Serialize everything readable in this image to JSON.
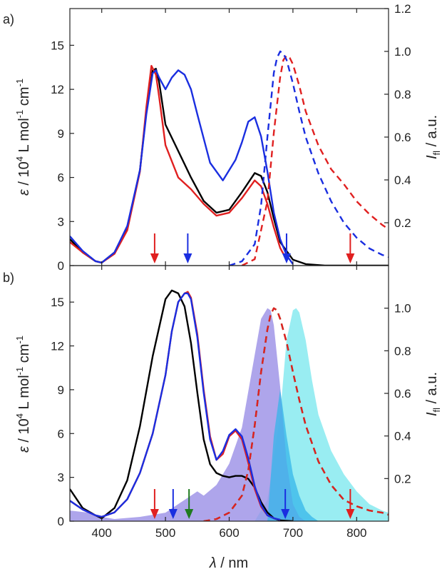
{
  "figure": {
    "panels": [
      {
        "id": "a",
        "label": "a)"
      },
      {
        "id": "b",
        "label": "b)"
      }
    ],
    "xlabel": "λ / nm",
    "ylabel_left": {
      "main": "ε / 10",
      "sup": "4",
      "mid": " L mol",
      "sup2": "-1",
      "end": " cm",
      "sup3": "-1"
    },
    "ylabel_right": {
      "main": "I",
      "sub": "fl",
      "end": " / a.u."
    },
    "colors": {
      "black": "#000000",
      "red": "#e02020",
      "blue": "#1a2ee0",
      "green": "#1f7a1f",
      "purple_fill": "#9a8ee6",
      "cyan_fill": "#7fe8ef",
      "deep_cyan": "#35b6ea"
    }
  },
  "chart_data": [
    {
      "panel": "a",
      "type": "line",
      "xlim": [
        350,
        850
      ],
      "x_ticks": [
        400,
        500,
        600,
        700,
        800
      ],
      "ylim_left": [
        0,
        17.5
      ],
      "y_ticks_left": [
        "0",
        "3",
        "6",
        "9",
        "12",
        "15"
      ],
      "ylim_right": [
        0,
        1.2
      ],
      "y_ticks_right": [
        "0.2",
        "0.4",
        "0.6",
        "0.8",
        "1.0",
        "1.2"
      ],
      "series": [
        {
          "color": "black",
          "style": "solid",
          "axis": "left",
          "x": [
            350,
            370,
            390,
            400,
            420,
            440,
            460,
            470,
            480,
            485,
            490,
            500,
            520,
            540,
            560,
            580,
            600,
            620,
            640,
            650,
            660,
            670,
            680,
            700,
            720,
            750,
            800,
            850
          ],
          "y": [
            1.8,
            0.9,
            0.3,
            0.2,
            0.9,
            2.6,
            6.5,
            10.5,
            13.3,
            13.4,
            12.5,
            9.6,
            7.8,
            6.0,
            4.4,
            3.6,
            3.8,
            5.0,
            6.3,
            6.1,
            5.0,
            3.2,
            1.6,
            0.4,
            0.1,
            0.0,
            0.0,
            0.0
          ]
        },
        {
          "color": "red",
          "style": "solid",
          "axis": "left",
          "x": [
            350,
            370,
            390,
            400,
            420,
            440,
            460,
            470,
            478,
            485,
            490,
            500,
            520,
            540,
            560,
            580,
            600,
            620,
            640,
            650,
            660,
            670,
            680,
            690
          ],
          "y": [
            1.6,
            0.9,
            0.3,
            0.2,
            0.8,
            2.4,
            6.4,
            10.8,
            13.6,
            13.0,
            11.5,
            8.2,
            6.0,
            5.2,
            4.2,
            3.4,
            3.6,
            4.6,
            5.8,
            5.4,
            4.2,
            2.6,
            1.2,
            0.4
          ]
        },
        {
          "color": "blue",
          "style": "solid",
          "axis": "left",
          "x": [
            350,
            370,
            390,
            400,
            420,
            440,
            460,
            470,
            480,
            485,
            490,
            500,
            510,
            520,
            530,
            540,
            550,
            570,
            590,
            610,
            620,
            630,
            640,
            650,
            660,
            670,
            680,
            690,
            700
          ],
          "y": [
            2.0,
            1.0,
            0.3,
            0.2,
            0.9,
            2.7,
            6.5,
            10.3,
            13.1,
            13.3,
            12.8,
            12.0,
            12.8,
            13.3,
            13.0,
            12.0,
            10.3,
            7.0,
            5.8,
            7.2,
            8.4,
            9.8,
            10.1,
            8.8,
            6.4,
            3.6,
            1.8,
            0.7,
            0.1
          ]
        },
        {
          "color": "red",
          "style": "dashed",
          "axis": "right",
          "x": [
            620,
            640,
            660,
            670,
            680,
            685,
            690,
            695,
            700,
            710,
            720,
            740,
            760,
            780,
            800,
            820,
            840,
            850
          ],
          "y": [
            0.0,
            0.03,
            0.3,
            0.62,
            0.88,
            0.96,
            0.98,
            0.97,
            0.94,
            0.84,
            0.72,
            0.56,
            0.45,
            0.38,
            0.3,
            0.24,
            0.19,
            0.17
          ]
        },
        {
          "color": "blue",
          "style": "dashed",
          "axis": "right",
          "x": [
            600,
            620,
            640,
            650,
            660,
            670,
            675,
            680,
            685,
            690,
            700,
            710,
            720,
            740,
            760,
            780,
            800,
            820,
            840,
            850
          ],
          "y": [
            0.0,
            0.02,
            0.1,
            0.28,
            0.6,
            0.9,
            0.97,
            1.0,
            0.99,
            0.96,
            0.85,
            0.72,
            0.6,
            0.43,
            0.3,
            0.2,
            0.13,
            0.08,
            0.05,
            0.04
          ]
        }
      ],
      "arrows": [
        {
          "x": 483,
          "color": "red"
        },
        {
          "x": 535,
          "color": "blue"
        },
        {
          "x": 690,
          "color": "blue"
        },
        {
          "x": 790,
          "color": "red"
        }
      ]
    },
    {
      "panel": "b",
      "type": "line",
      "xlim": [
        350,
        850
      ],
      "x_ticks": [
        400,
        500,
        600,
        700,
        800
      ],
      "x_tick_labels": [
        "400",
        "500",
        "600",
        "700",
        "800"
      ],
      "ylim_left": [
        0,
        17.5
      ],
      "y_ticks_left": [
        "0",
        "3",
        "6",
        "9",
        "12",
        "15"
      ],
      "ylim_right": [
        0,
        1.2
      ],
      "y_ticks_right": [
        "0.2",
        "0.4",
        "0.6",
        "0.8",
        "1.0"
      ],
      "areas": [
        {
          "color": "cyan_fill",
          "axis": "right",
          "x": [
            640,
            660,
            680,
            690,
            700,
            705,
            710,
            720,
            730,
            740,
            760,
            780,
            800,
            820,
            840,
            850
          ],
          "y": [
            0.0,
            0.1,
            0.5,
            0.85,
            0.99,
            1.0,
            0.98,
            0.85,
            0.66,
            0.5,
            0.33,
            0.22,
            0.14,
            0.08,
            0.05,
            0.04
          ]
        },
        {
          "color": "purple_fill",
          "axis": "right",
          "x": [
            350,
            380,
            400,
            420,
            460,
            500,
            540,
            550,
            560,
            580,
            600,
            620,
            640,
            650,
            660,
            665,
            670,
            680,
            690,
            700,
            710,
            720
          ],
          "y": [
            0.05,
            0.04,
            0.02,
            0.01,
            0.02,
            0.04,
            0.12,
            0.14,
            0.12,
            0.17,
            0.27,
            0.44,
            0.78,
            0.95,
            1.0,
            0.99,
            0.92,
            0.63,
            0.28,
            0.08,
            0.02,
            0.0
          ]
        },
        {
          "color": "deep_cyan",
          "axis": "right",
          "x": [
            660,
            670,
            680,
            690,
            700,
            710,
            720,
            730,
            740
          ],
          "y": [
            0.0,
            0.4,
            0.62,
            0.4,
            0.22,
            0.12,
            0.05,
            0.02,
            0.0
          ]
        }
      ],
      "series": [
        {
          "color": "black",
          "style": "solid",
          "axis": "left",
          "x": [
            350,
            370,
            390,
            400,
            420,
            440,
            460,
            480,
            500,
            510,
            520,
            530,
            540,
            550,
            560,
            570,
            580,
            590,
            600,
            610,
            620,
            630,
            640,
            650,
            660,
            670,
            680,
            700
          ],
          "y": [
            2.2,
            0.9,
            0.4,
            0.2,
            0.9,
            2.8,
            6.5,
            11.3,
            15.2,
            15.8,
            15.6,
            14.7,
            12.2,
            8.8,
            5.6,
            3.9,
            3.3,
            3.1,
            3.0,
            3.1,
            3.1,
            2.9,
            2.3,
            1.3,
            0.6,
            0.2,
            0.05,
            0.0
          ]
        },
        {
          "color": "red",
          "style": "solid",
          "axis": "left",
          "x": [
            350,
            370,
            390,
            400,
            420,
            440,
            460,
            480,
            500,
            510,
            520,
            530,
            535,
            540,
            550,
            560,
            570,
            580,
            590,
            600,
            610,
            620,
            630,
            640,
            650,
            660,
            670,
            680
          ],
          "y": [
            1.4,
            0.8,
            0.4,
            0.3,
            0.6,
            1.5,
            3.3,
            6.0,
            10.0,
            13.0,
            15.0,
            15.6,
            15.7,
            15.3,
            12.8,
            9.0,
            5.8,
            4.2,
            4.6,
            5.8,
            6.2,
            5.6,
            4.0,
            2.2,
            1.0,
            0.4,
            0.2,
            0.1
          ]
        },
        {
          "color": "blue",
          "style": "solid",
          "axis": "left",
          "x": [
            350,
            370,
            390,
            400,
            420,
            440,
            460,
            480,
            500,
            510,
            520,
            530,
            535,
            540,
            550,
            560,
            570,
            580,
            590,
            600,
            610,
            620,
            630,
            640,
            650,
            660,
            670,
            680
          ],
          "y": [
            1.4,
            0.8,
            0.4,
            0.3,
            0.6,
            1.5,
            3.3,
            6.0,
            10.0,
            13.0,
            15.0,
            15.6,
            15.6,
            15.2,
            12.6,
            8.8,
            5.6,
            4.2,
            4.8,
            5.9,
            6.3,
            5.8,
            4.3,
            2.4,
            1.1,
            0.4,
            0.2,
            0.1
          ]
        },
        {
          "color": "green",
          "style": "dashed",
          "axis": "right",
          "x": [
            560,
            580,
            600,
            620,
            630,
            640,
            650,
            660,
            665,
            670,
            675,
            680,
            690,
            700,
            710,
            720,
            740,
            760,
            780,
            800,
            820,
            840,
            850
          ],
          "y": [
            0.0,
            0.01,
            0.04,
            0.12,
            0.24,
            0.45,
            0.7,
            0.9,
            0.97,
            1.0,
            0.99,
            0.95,
            0.84,
            0.7,
            0.57,
            0.45,
            0.28,
            0.17,
            0.1,
            0.07,
            0.05,
            0.04,
            0.03
          ]
        },
        {
          "color": "red",
          "style": "dashed",
          "axis": "right",
          "x": [
            560,
            580,
            600,
            620,
            630,
            640,
            650,
            660,
            665,
            670,
            675,
            680,
            690,
            700,
            710,
            720,
            740,
            760,
            780,
            800,
            820,
            840,
            850
          ],
          "y": [
            0.0,
            0.01,
            0.04,
            0.12,
            0.24,
            0.45,
            0.7,
            0.9,
            0.97,
            1.0,
            0.99,
            0.95,
            0.84,
            0.7,
            0.57,
            0.45,
            0.28,
            0.17,
            0.1,
            0.07,
            0.05,
            0.04,
            0.03
          ]
        }
      ],
      "arrows": [
        {
          "x": 483,
          "color": "red"
        },
        {
          "x": 512,
          "color": "blue"
        },
        {
          "x": 537,
          "color": "green"
        },
        {
          "x": 688,
          "color": "blue"
        },
        {
          "x": 790,
          "color": "red"
        }
      ]
    }
  ]
}
